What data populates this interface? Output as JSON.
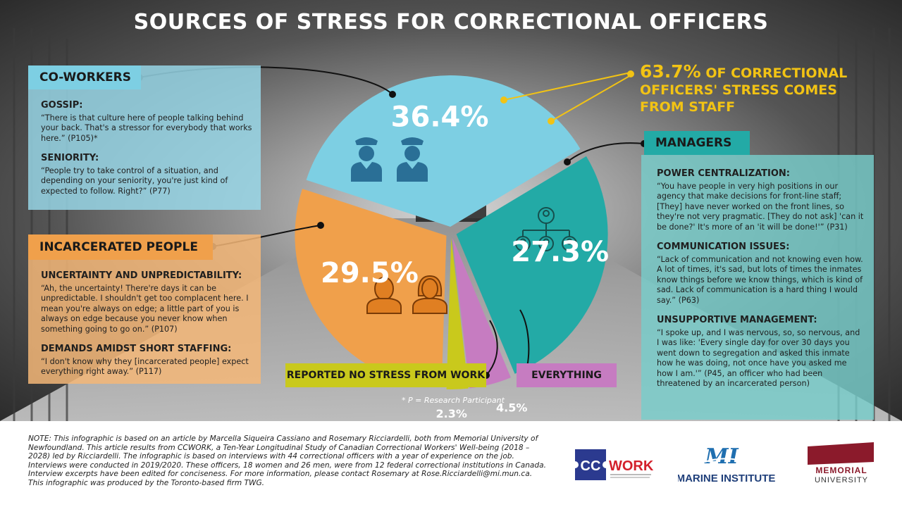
{
  "title": "SOURCES OF STRESS FOR CORRECTIONAL OFFICERS",
  "chart_data": {
    "type": "pie",
    "title": "SOURCES OF STRESS FOR CORRECTIONAL OFFICERS",
    "slices": [
      {
        "label": "CO-WORKERS",
        "value": 36.4,
        "value_label": "36.4%",
        "color": "#7dcfe3"
      },
      {
        "label": "MANAGERS",
        "value": 27.3,
        "value_label": "27.3%",
        "color": "#23aaa6"
      },
      {
        "label": "EVERYTHING",
        "value": 4.5,
        "value_label": "4.5%",
        "color": "#c67cc1"
      },
      {
        "label": "REPORTED NO STRESS FROM WORK",
        "value": 2.3,
        "value_label": "2.3%",
        "color": "#c9c91c"
      },
      {
        "label": "INCARCERATED PEOPLE",
        "value": 29.5,
        "value_label": "29.5%",
        "color": "#f0a04b"
      }
    ]
  },
  "callout": {
    "value": "63.7%",
    "text": "OF CORRECTIONAL OFFICERS' STRESS COMES FROM STAFF",
    "color": "#f2c314"
  },
  "coworkers": {
    "heading": "CO-WORKERS",
    "sections": [
      {
        "title": "GOSSIP:",
        "text": "“There is that culture here of people talking behind your back. That's a stressor for everybody that works here.” (P105)*"
      },
      {
        "title": "SENIORITY:",
        "text": "“People try to take control of a situation, and depending on your seniority, you're just kind of expected to follow. Right?” (P77)"
      }
    ]
  },
  "incarcerated": {
    "heading": "INCARCERATED PEOPLE",
    "sections": [
      {
        "title": "UNCERTAINTY AND UNPREDICTABILITY:",
        "text": "“Ah, the uncertainty! There're days it can be unpredictable. I shouldn't get too complacent here. I mean you're always on edge; a little part of you is always on edge because you never know when something going to go on.” (P107)"
      },
      {
        "title": "DEMANDS AMIDST SHORT STAFFING:",
        "text": "“I don't know why they [incarcerated people] expect everything right away.” (P117)"
      }
    ]
  },
  "managers": {
    "heading": "MANAGERS",
    "sections": [
      {
        "title": "POWER CENTRALIZATION:",
        "text": "“You have people in very high positions in our agency that make decisions for front-line staff; [They] have never worked on the front lines, so they're not very pragmatic. [They do not ask] 'can it be done?' It's more of an 'it will be done!'” (P31)"
      },
      {
        "title": "COMMUNICATION ISSUES:",
        "text": "“Lack of communication and not knowing even how. A lot of times, it's sad, but lots of times the inmates know things before we know things, which is kind of sad. Lack of communication is a hard thing I would say.” (P63)"
      },
      {
        "title": "UNSUPPORTIVE MANAGEMENT:",
        "text": "“I spoke up, and I was nervous, so, so nervous, and I was like: 'Every single day for over 30 days you went down to segregation and asked this inmate how he was doing, not once have you asked me how I am.'” (P45, an officer who had been threatened by an incarcerated person)"
      }
    ]
  },
  "tags": {
    "no_stress": "REPORTED NO STRESS FROM WORK",
    "everything": "EVERYTHING"
  },
  "footnote": "* P = Research Participant",
  "note": "NOTE: This infographic is based on an article by Marcella Siqueira Cassiano and Rosemary Ricciardelli, both from Memorial University of Newfoundland. This article results from CCWORK, a Ten-Year Longitudinal Study of Canadian Correctional Workers' Well-being (2018 – 2028) led by Ricciardelli. The infographic is based on interviews with 44 correctional officers with a year of experience on the job. Interviews were conducted in 2019/2020. These officers, 18 women and 26 men, were from 12 federal correctional institutions in Canada. Interview excerpts have been edited for conciseness. For more information, please contact Rosemary at Rose.Ricciardelli@mi.mun.ca. This infographic was produced by the Toronto-based firm TWG.",
  "logos": {
    "ccwork_cc": "CC",
    "ccwork_work": "WORK",
    "marine_mark": "MI",
    "marine_text": "MARINE INSTITUTE",
    "memorial_top": "MEMORIAL",
    "memorial_bottom": "UNIVERSITY"
  }
}
